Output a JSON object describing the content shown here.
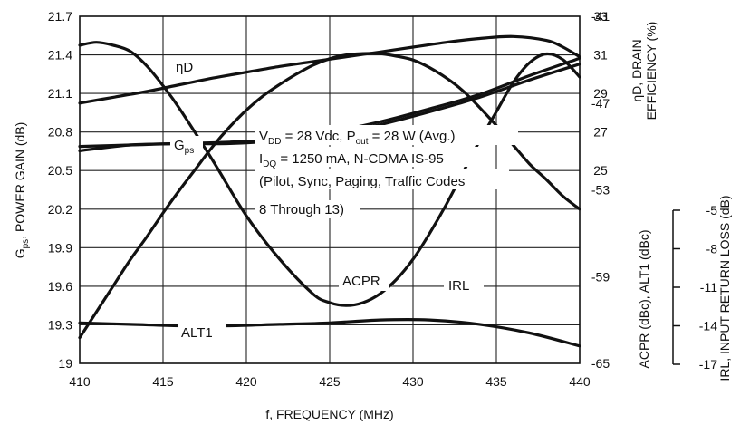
{
  "chart_data": {
    "type": "line",
    "x_label": "f, FREQUENCY (MHz)",
    "x_ticks": [
      "410",
      "415",
      "420",
      "425",
      "430",
      "435",
      "440"
    ],
    "xlim": [
      410,
      440
    ],
    "left_axis": {
      "label_main": "G",
      "label_sub": "ps",
      "label_rest": ", POWER GAIN (dB)",
      "ticks": [
        "21.7",
        "21.4",
        "21.1",
        "20.8",
        "20.5",
        "20.2",
        "19.9",
        "19.6",
        "19.3",
        "19"
      ],
      "range": [
        19,
        21.7
      ]
    },
    "right_axis_upper": {
      "label_line1": "ηD, DRAIN",
      "label_line2": "EFFICIENCY (%)",
      "ticks": [
        "33",
        "31",
        "29",
        "27",
        "25"
      ],
      "range": [
        15,
        33
      ]
    },
    "right_axis_lower": {
      "label": "ACPR (dBc), ALT1 (dBc)",
      "ticks": [
        "-41",
        "-47",
        "-53",
        "-59",
        "-65"
      ],
      "range": [
        -65,
        -41
      ]
    },
    "right_axis_irl": {
      "label": "IRL, INPUT RETURN LOSS (dB)",
      "ticks": [
        "-5",
        "-8",
        "-11",
        "-14",
        "-17"
      ],
      "range": [
        -17,
        -5
      ]
    },
    "grid": true,
    "annotation_lines": [
      "V_DD = 28 Vdc, P_out = 28 W (Avg.)",
      "I_DQ = 1250 mA, N-CDMA IS-95",
      "(Pilot, Sync, Paging, Traffic Codes",
      "8 Through 13)"
    ],
    "annotation_rich": {
      "l1_a": "V",
      "l1_a_sub": "DD",
      "l1_b": " = 28 Vdc, P",
      "l1_b_sub": "out",
      "l1_c": " = 28 W (Avg.)",
      "l2_a": "I",
      "l2_a_sub": "DQ",
      "l2_b": " = 1250 mA, N-CDMA IS-95",
      "l3": "(Pilot, Sync, Paging, Traffic Codes",
      "l4": "8 Through 13)"
    },
    "series": [
      {
        "name": "ηD",
        "axis": "right_upper",
        "x": [
          410,
          412,
          414,
          416,
          418,
          420,
          422,
          424,
          426,
          428,
          430,
          432,
          434,
          436,
          438,
          439,
          440
        ],
        "y": [
          28.5,
          28.8,
          29.1,
          29.45,
          29.8,
          30.1,
          30.4,
          30.65,
          30.9,
          31.15,
          31.4,
          31.65,
          31.85,
          31.95,
          31.75,
          31.4,
          30.9
        ]
      },
      {
        "name": "Gps",
        "axis": "left",
        "x": [
          410,
          411,
          412,
          413,
          414,
          415,
          416,
          417,
          418,
          419,
          420,
          421,
          422,
          423,
          424,
          425,
          426,
          427,
          428,
          429,
          430,
          431,
          432,
          433,
          434,
          435,
          436,
          437,
          438,
          439,
          440
        ],
        "y": [
          19.2,
          19.4,
          19.6,
          19.8,
          19.98,
          20.17,
          20.35,
          20.52,
          20.69,
          20.84,
          20.97,
          21.08,
          21.17,
          21.25,
          21.32,
          21.37,
          21.4,
          21.41,
          21.41,
          21.39,
          21.36,
          21.3,
          21.22,
          21.12,
          20.99,
          20.85,
          20.7,
          20.55,
          20.43,
          20.3,
          20.2
        ]
      },
      {
        "name": "ACPR",
        "axis": "right_lower",
        "x": [
          410,
          413,
          416,
          419,
          422,
          425,
          428,
          431,
          434,
          437,
          440
        ],
        "y": [
          -50.0,
          -49.9,
          -49.8,
          -49.8,
          -49.6,
          -49.2,
          -48.5,
          -47.6,
          -46.6,
          -45.4,
          -44.3
        ]
      },
      {
        "name": "ALT1",
        "axis": "right_lower",
        "x": [
          410,
          413,
          416,
          419,
          422,
          425,
          428,
          431,
          434,
          437,
          440
        ],
        "y": [
          -62.2,
          -62.3,
          -62.4,
          -62.4,
          -62.3,
          -62.2,
          -62.0,
          -62.0,
          -62.3,
          -62.9,
          -63.8
        ]
      },
      {
        "name": "IRL",
        "axis": "right_irl",
        "x": [
          410,
          411,
          412,
          413,
          414,
          415,
          416,
          418,
          420,
          422,
          424,
          425,
          426,
          427,
          428,
          429,
          430,
          431,
          432,
          433,
          434,
          435,
          436,
          437,
          438,
          439,
          440
        ],
        "y": [
          -6.0,
          -5.9,
          -6.0,
          -6.2,
          -6.7,
          -7.4,
          -8.2,
          -10.0,
          -11.9,
          -13.4,
          -14.6,
          -14.9,
          -15.0,
          -14.9,
          -14.6,
          -14.1,
          -13.4,
          -12.5,
          -11.5,
          -10.4,
          -9.3,
          -8.3,
          -7.3,
          -6.6,
          -6.3,
          -6.5,
          -7.1
        ]
      },
      {
        "name": "",
        "axis": "right_lower",
        "x": [
          410,
          413,
          416,
          419,
          422,
          425,
          428,
          431,
          434,
          437,
          440
        ],
        "y": [
          -50.3,
          -49.9,
          -49.8,
          -49.7,
          -49.5,
          -49.0,
          -48.3,
          -47.4,
          -46.4,
          -45.1,
          -43.9
        ]
      }
    ]
  }
}
